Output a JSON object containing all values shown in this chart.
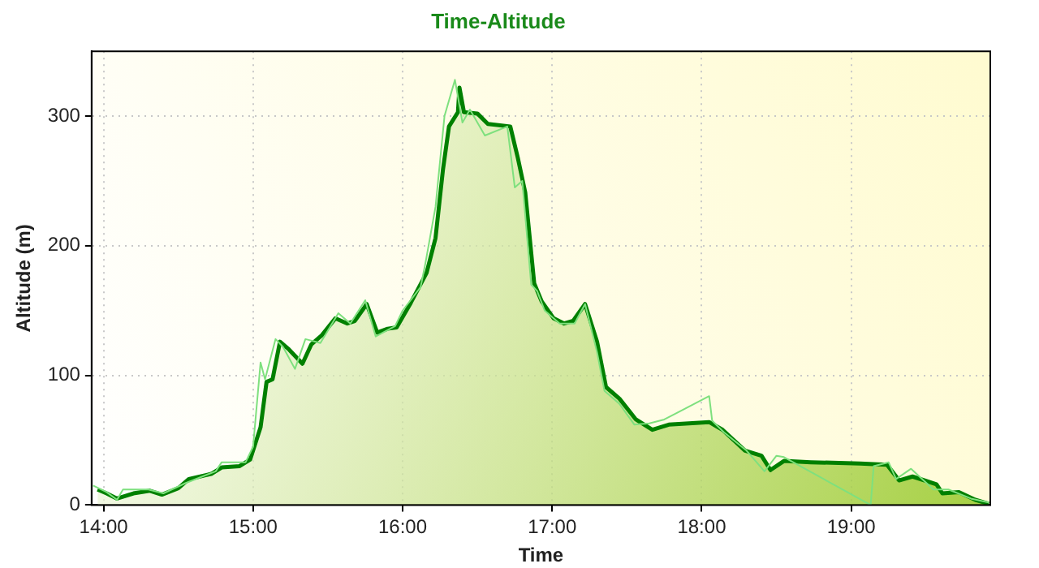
{
  "chart_data": {
    "type": "line",
    "title": "Time-Altitude",
    "xlabel": "Time",
    "ylabel": "Altitude (m)",
    "xlim": [
      13.92,
      19.93
    ],
    "ylim": [
      0,
      350
    ],
    "xticks": [
      {
        "value": 14,
        "label": "14:00"
      },
      {
        "value": 15,
        "label": "15:00"
      },
      {
        "value": 16,
        "label": "16:00"
      },
      {
        "value": 17,
        "label": "17:00"
      },
      {
        "value": 18,
        "label": "18:00"
      },
      {
        "value": 19,
        "label": "19:00"
      }
    ],
    "yticks": [
      0,
      100,
      200,
      300
    ],
    "grid": true,
    "legend": false,
    "marker": "none",
    "line_style": "solid",
    "series": [
      {
        "type": "area",
        "color": "#008000",
        "x": [
          13.96,
          14.02,
          14.09,
          14.2,
          14.31,
          14.39,
          14.5,
          14.57,
          14.72,
          14.79,
          14.91,
          14.98,
          15.05,
          15.09,
          15.13,
          15.18,
          15.24,
          15.33,
          15.39,
          15.46,
          15.55,
          15.63,
          15.68,
          15.76,
          15.83,
          15.9,
          15.96,
          16.05,
          16.16,
          16.22,
          16.27,
          16.31,
          16.37,
          16.38,
          16.41,
          16.5,
          16.57,
          16.72,
          16.77,
          16.82,
          16.88,
          16.93,
          17.01,
          17.08,
          17.14,
          17.22,
          17.3,
          17.36,
          17.45,
          17.56,
          17.67,
          17.78,
          18.05,
          18.14,
          18.29,
          18.4,
          18.46,
          18.55,
          18.73,
          19.06,
          19.24,
          19.32,
          19.41,
          19.57,
          19.61,
          19.72,
          19.83,
          19.92
        ],
        "values": [
          12,
          9,
          5,
          9,
          11,
          8,
          13,
          20,
          24,
          29,
          30,
          35,
          60,
          95,
          97,
          126,
          120,
          109,
          124,
          131,
          144,
          140,
          142,
          155,
          133,
          136,
          137,
          155,
          179,
          206,
          259,
          292,
          303,
          322,
          303,
          302,
          294,
          292,
          268,
          241,
          171,
          157,
          144,
          140,
          142,
          155,
          126,
          91,
          82,
          66,
          58,
          62,
          64,
          58,
          42,
          38,
          27,
          34,
          33,
          32,
          31,
          19,
          22,
          16,
          9,
          10,
          4,
          1
        ]
      },
      {
        "type": "line",
        "color": "#7ee07e",
        "x": [
          13.93,
          14.02,
          14.09,
          14.13,
          14.3,
          14.4,
          14.55,
          14.75,
          14.79,
          14.95,
          15.0,
          15.05,
          15.08,
          15.15,
          15.2,
          15.28,
          15.35,
          15.45,
          15.57,
          15.65,
          15.75,
          15.82,
          15.95,
          16.0,
          16.12,
          16.15,
          16.22,
          16.28,
          16.35,
          16.4,
          16.45,
          16.55,
          16.7,
          16.75,
          16.8,
          16.86,
          16.9,
          16.95,
          17.05,
          17.15,
          17.22,
          17.3,
          17.35,
          17.45,
          17.55,
          17.65,
          17.75,
          18.05,
          18.07,
          18.15,
          18.3,
          18.42,
          18.5,
          18.55,
          19.13,
          19.15,
          19.25,
          19.3,
          19.4,
          19.55,
          19.65,
          19.8,
          19.92
        ],
        "values": [
          15,
          10,
          4,
          12,
          12,
          9,
          17,
          26,
          33,
          33,
          45,
          110,
          97,
          128,
          122,
          105,
          128,
          125,
          148,
          140,
          158,
          130,
          138,
          150,
          168,
          185,
          230,
          300,
          328,
          295,
          305,
          285,
          292,
          245,
          250,
          170,
          165,
          150,
          140,
          140,
          155,
          118,
          88,
          78,
          62,
          63,
          66,
          84,
          65,
          56,
          42,
          26,
          38,
          37,
          0,
          30,
          33,
          20,
          28,
          12,
          12,
          5,
          2
        ]
      }
    ]
  }
}
